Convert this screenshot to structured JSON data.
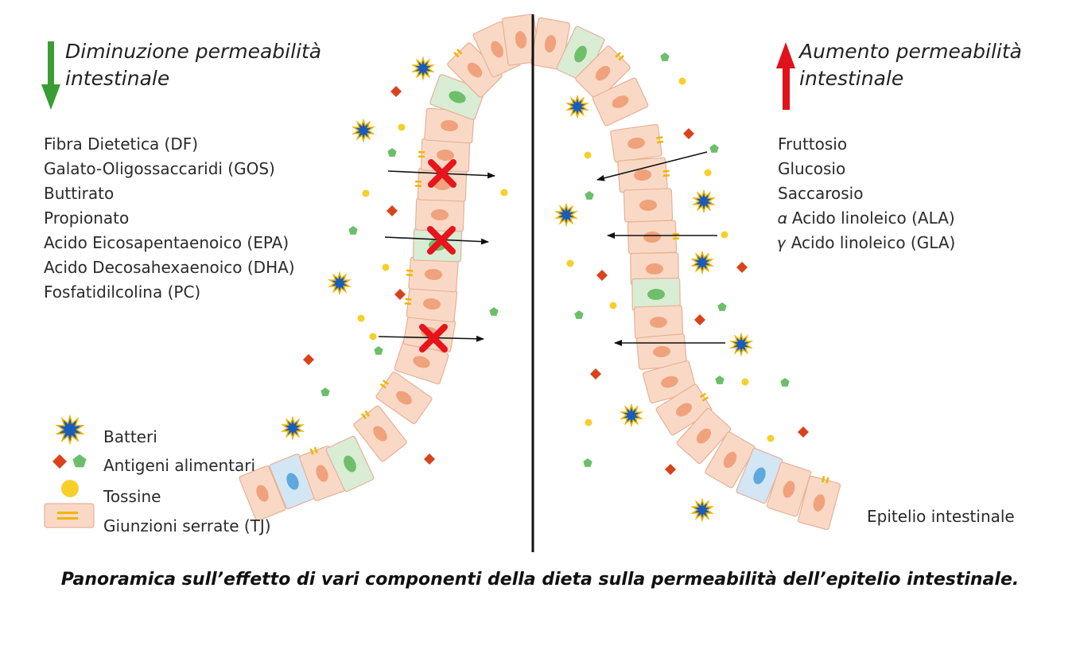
{
  "left_panel": {
    "heading_line1": "Diminuzione permeabilità",
    "heading_line2": "intestinale",
    "items": [
      "Fibra Dietetica (DF)",
      "Galato-Oligossaccaridi (GOS)",
      "Buttirato",
      "Propionato",
      "Acido Eicosapentaenoico (EPA)",
      "Acido Decosahexaenoico (DHA)",
      "Fosfatidilcolina (PC)"
    ],
    "arrow_color": "#3a9d33"
  },
  "right_panel": {
    "heading_line1": "Aumento permeabilità",
    "heading_line2": "intestinale",
    "items": [
      "Fruttosio",
      "Glucosio",
      "Saccarosio",
      "𝛼 Acido linoleico (ALA)",
      "𝛾 Acido linoleico  (GLA)"
    ],
    "arrow_color": "#e0121b"
  },
  "legend": {
    "bacteria": "Batteri",
    "antigens": "Antigeni alimentari",
    "toxins": "Tossine",
    "tight_junctions": "Giunzioni serrate (TJ)"
  },
  "epithelium_label": "Epitelio intestinale",
  "caption": "Panoramica sull’effetto di vari componenti della dieta sulla permeabilità dell’epitelio intestinale.",
  "colors": {
    "cell_fill": "#f9d9c6",
    "cell_stroke": "#e8b096",
    "nucleus": "#f0a27c",
    "green_cell": "#d9ecd4",
    "green_nucleus": "#6fbf6a",
    "blue_cell": "#d3e6f4",
    "blue_nucleus": "#5ea8dd",
    "tight_junction": "#f2b400",
    "bacteria": "#1a5cb8",
    "bacteria_outline": "#f0b400",
    "antigen_diamond": "#d8431c",
    "antigen_pentagon": "#6cbf6a",
    "toxin": "#f7cf2b",
    "block_x": "#e8141c"
  }
}
